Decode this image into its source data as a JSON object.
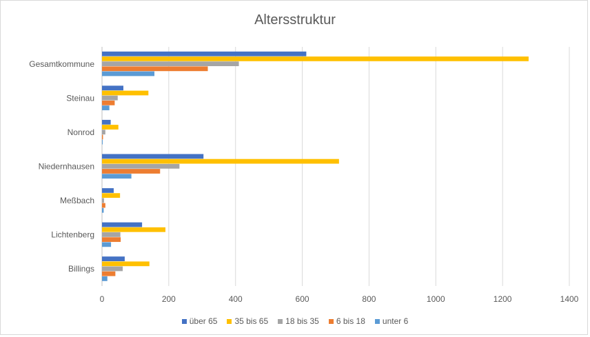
{
  "chart_data": {
    "type": "bar",
    "orientation": "horizontal",
    "title": "Altersstruktur",
    "categories": [
      "Gesamtkommune",
      "Steinau",
      "Nonrod",
      "Niedernhausen",
      "Meßbach",
      "Lichtenberg",
      "Billings"
    ],
    "series": [
      {
        "name": "über 65",
        "color": "#4472c4",
        "values": [
          612,
          64,
          26,
          304,
          35,
          120,
          68
        ]
      },
      {
        "name": "35 bis 65",
        "color": "#ffc000",
        "values": [
          1278,
          139,
          49,
          710,
          54,
          190,
          142
        ]
      },
      {
        "name": "18 bis 35",
        "color": "#a5a5a5",
        "values": [
          410,
          47,
          10,
          232,
          6,
          55,
          62
        ]
      },
      {
        "name": "6 bis 18",
        "color": "#ed7d31",
        "values": [
          317,
          38,
          3,
          174,
          10,
          56,
          40
        ]
      },
      {
        "name": "unter 6",
        "color": "#5b9bd5",
        "values": [
          157,
          22,
          2,
          88,
          5,
          27,
          16
        ]
      }
    ],
    "xlim": [
      0,
      1400
    ],
    "xticks": [
      "0",
      "200",
      "400",
      "600",
      "800",
      "1000",
      "1200",
      "1400"
    ],
    "grid": true,
    "legend_position": "bottom"
  }
}
